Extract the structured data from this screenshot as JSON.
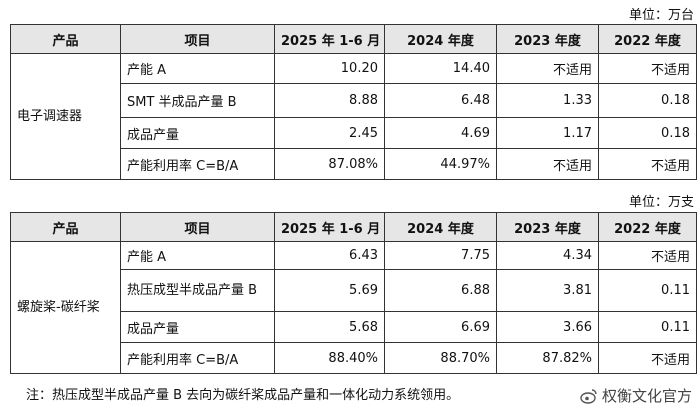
{
  "table1": {
    "unit": "单位：万台",
    "headers": [
      "产品",
      "项目",
      "2025 年 1-6 月",
      "2024 年度",
      "2023 年度",
      "2022 年度"
    ],
    "product": "电子调速器",
    "rows": [
      {
        "item": "产能 A",
        "v2025": "10.20",
        "v2024": "14.40",
        "v2023": "不适用",
        "v2022": "不适用"
      },
      {
        "item": "SMT 半成品产量 B",
        "v2025": "8.88",
        "v2024": "6.48",
        "v2023": "1.33",
        "v2022": "0.18"
      },
      {
        "item": "成品产量",
        "v2025": "2.45",
        "v2024": "4.69",
        "v2023": "1.17",
        "v2022": "0.18"
      },
      {
        "item": "产能利用率 C=B/A",
        "v2025": "87.08%",
        "v2024": "44.97%",
        "v2023": "不适用",
        "v2022": "不适用"
      }
    ]
  },
  "table2": {
    "unit": "单位：万支",
    "headers": [
      "产品",
      "项目",
      "2025 年 1-6 月",
      "2024 年度",
      "2023 年度",
      "2022 年度"
    ],
    "product": "螺旋桨-碳纤桨",
    "rows": [
      {
        "item": "产能 A",
        "v2025": "6.43",
        "v2024": "7.75",
        "v2023": "4.34",
        "v2022": "不适用"
      },
      {
        "item": "热压成型半成品产量 B",
        "v2025": "5.69",
        "v2024": "6.88",
        "v2023": "3.81",
        "v2022": "0.11"
      },
      {
        "item": "成品产量",
        "v2025": "5.68",
        "v2024": "6.69",
        "v2023": "3.66",
        "v2022": "0.11"
      },
      {
        "item": "产能利用率 C=B/A",
        "v2025": "88.40%",
        "v2024": "88.70%",
        "v2023": "87.82%",
        "v2022": "不适用"
      }
    ]
  },
  "note": "注：热压成型半成品产量 B 去向为碳纤桨成品产量和一体化动力系统领用。",
  "watermark": "权衡文化官方"
}
